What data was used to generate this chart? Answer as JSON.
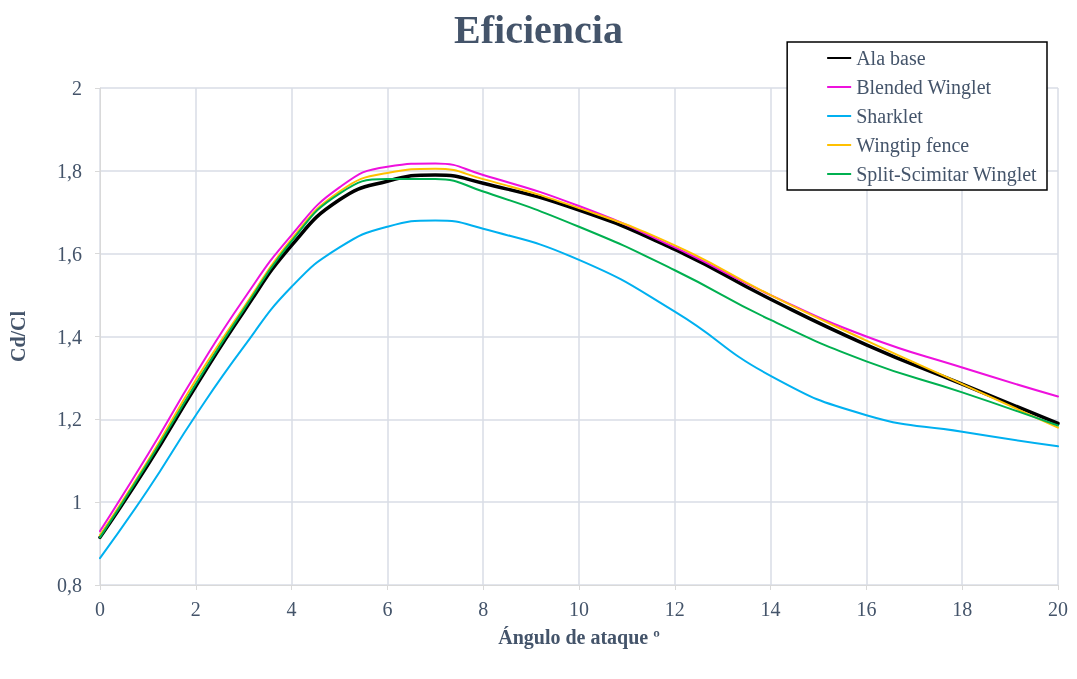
{
  "chart_data": {
    "type": "line",
    "title": "Eficiencia",
    "xlabel": "Ángulo de ataque º",
    "ylabel": "Cd/Cl",
    "x": [
      0,
      1,
      2,
      3,
      4,
      5,
      6,
      7,
      8,
      10,
      12,
      14,
      16,
      18,
      20
    ],
    "series": [
      {
        "name": "Ala base",
        "color": "#000000",
        "values": [
          0.915,
          1.09,
          1.28,
          1.46,
          1.62,
          1.73,
          1.775,
          1.79,
          1.77,
          1.705,
          1.61,
          1.49,
          1.38,
          1.285,
          1.19
        ]
      },
      {
        "name": "Blended Winglet",
        "color": "#ee11dd",
        "values": [
          0.93,
          1.115,
          1.31,
          1.49,
          1.645,
          1.76,
          1.81,
          1.818,
          1.79,
          1.715,
          1.615,
          1.5,
          1.4,
          1.325,
          1.255
        ]
      },
      {
        "name": "Sharklet",
        "color": "#00b0f0",
        "values": [
          0.865,
          1.03,
          1.21,
          1.375,
          1.52,
          1.615,
          1.665,
          1.68,
          1.66,
          1.585,
          1.46,
          1.305,
          1.21,
          1.17,
          1.135
        ]
      },
      {
        "name": "Wingtip fence",
        "color": "#ffc000",
        "values": [
          0.92,
          1.1,
          1.295,
          1.47,
          1.635,
          1.75,
          1.795,
          1.805,
          1.78,
          1.71,
          1.62,
          1.5,
          1.39,
          1.285,
          1.18
        ]
      },
      {
        "name": "Split-Scimitar Winglet",
        "color": "#00b050",
        "values": [
          0.915,
          1.095,
          1.285,
          1.465,
          1.63,
          1.745,
          1.78,
          1.78,
          1.75,
          1.665,
          1.56,
          1.44,
          1.34,
          1.265,
          1.185
        ]
      }
    ],
    "xlim": [
      0,
      20
    ],
    "xticks": [
      0,
      2,
      4,
      6,
      8,
      10,
      12,
      14,
      16,
      18,
      20
    ],
    "ylim": [
      0.8,
      2
    ],
    "yticks": [
      {
        "value": 0.8,
        "label": "0,8"
      },
      1,
      {
        "value": 1.2,
        "label": "1,2"
      },
      {
        "value": 1.4,
        "label": "1,4"
      },
      {
        "value": 1.6,
        "label": "1,6"
      },
      {
        "value": 1.8,
        "label": "1,8"
      },
      2
    ],
    "grid": true,
    "legend": "top right",
    "marker": "none",
    "line_style": "solid"
  }
}
